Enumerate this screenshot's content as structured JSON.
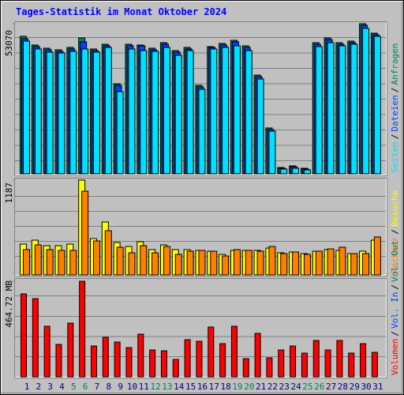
{
  "chart_data": [
    {
      "type": "bar",
      "title": "Tages-Statistik im Monat Oktober 2024",
      "series": [
        {
          "name": "Anfragen",
          "color": "#00805c",
          "values": [
            48600,
            45530,
            44410,
            43850,
            44690,
            48040,
            44130,
            45800,
            31840,
            45800,
            45530,
            44410,
            46360,
            43570,
            44690,
            31280,
            44970,
            46080,
            47200,
            45250,
            34910,
            16200,
            2230,
            2790,
            1960,
            46360,
            48040,
            46360,
            46920,
            53070,
            49720
          ]
        },
        {
          "name": "Dateien",
          "color": "#0040ff",
          "values": [
            47760,
            44970,
            43850,
            43290,
            44130,
            46640,
            43570,
            45250,
            31280,
            45250,
            45250,
            43850,
            45800,
            43010,
            44130,
            30720,
            44690,
            45530,
            46640,
            44690,
            34350,
            15640,
            1960,
            2510,
            1680,
            45800,
            47480,
            45800,
            46360,
            52510,
            49160
          ]
        },
        {
          "name": "Seiten",
          "color": "#00e0ff",
          "values": [
            46920,
            44130,
            43010,
            42730,
            43290,
            44130,
            43010,
            44690,
            29050,
            44130,
            43570,
            43290,
            44690,
            41900,
            43570,
            29880,
            44130,
            44690,
            45250,
            43570,
            33520,
            15080,
            1680,
            1960,
            1400,
            44970,
            46360,
            45250,
            45800,
            51390,
            48600
          ]
        }
      ],
      "ylim": [
        0,
        53070
      ],
      "yticks": [
        53070
      ],
      "legend_separator": "/",
      "grid": true
    },
    {
      "type": "bar",
      "series": [
        {
          "name": "Besuche",
          "color": "#ffff00",
          "values": [
            386,
            435,
            366,
            366,
            386,
            1187,
            455,
            663,
            406,
            356,
            415,
            317,
            376,
            317,
            317,
            307,
            297,
            257,
            307,
            307,
            307,
            336,
            277,
            287,
            267,
            297,
            317,
            307,
            267,
            297,
            435
          ]
        },
        {
          "name": "Rechner",
          "color": "#ff8000",
          "values": [
            317,
            376,
            317,
            307,
            307,
            1048,
            425,
            554,
            346,
            277,
            366,
            277,
            356,
            257,
            297,
            307,
            297,
            237,
            317,
            307,
            297,
            356,
            267,
            287,
            257,
            297,
            326,
            346,
            267,
            267,
            475
          ]
        }
      ],
      "ylim": [
        0,
        1187
      ],
      "yticks": [
        1187
      ],
      "legend_separator": "/",
      "grid": true
    },
    {
      "type": "bar",
      "series": [
        {
          "name": "Volumen",
          "color": "#ff0000",
          "values": [
            403.3,
            380.2,
            245.8,
            157.5,
            261.2,
            464.72,
            149.8,
            192.0,
            169.0,
            142.1,
            207.4,
            130.6,
            126.7,
            84.5,
            180.5,
            172.8,
            242.0,
            161.3,
            245.8,
            88.3,
            211.2,
            92.2,
            130.6,
            149.8,
            115.2,
            176.7,
            130.6,
            176.7,
            115.2,
            161.3,
            119.1
          ]
        }
      ],
      "legend_only": [
        {
          "name": "Vol. In",
          "color": "#0040ff"
        },
        {
          "name": "Vol. Out",
          "color": "#00805c"
        }
      ],
      "ylim": [
        0,
        464.72
      ],
      "yticks": [
        {
          "value": 464.72,
          "label": "464.72 MB"
        }
      ],
      "legend_separator": "/",
      "grid": true,
      "categories": [
        "1",
        "2",
        "3",
        "4",
        "5",
        "6",
        "7",
        "8",
        "9",
        "10",
        "11",
        "12",
        "13",
        "14",
        "15",
        "16",
        "17",
        "18",
        "19",
        "20",
        "21",
        "22",
        "23",
        "24",
        "25",
        "26",
        "27",
        "28",
        "29",
        "30",
        "31"
      ],
      "category_colors": [
        "#000080",
        "#000080",
        "#000080",
        "#000080",
        "#00805c",
        "#00805c",
        "#000080",
        "#000080",
        "#000080",
        "#000080",
        "#000080",
        "#00805c",
        "#00805c",
        "#000080",
        "#000080",
        "#000080",
        "#000080",
        "#000080",
        "#00805c",
        "#00805c",
        "#000080",
        "#000080",
        "#000080",
        "#000080",
        "#00805c",
        "#00805c",
        "#000080",
        "#000080",
        "#000080",
        "#000080",
        "#000080"
      ]
    }
  ]
}
